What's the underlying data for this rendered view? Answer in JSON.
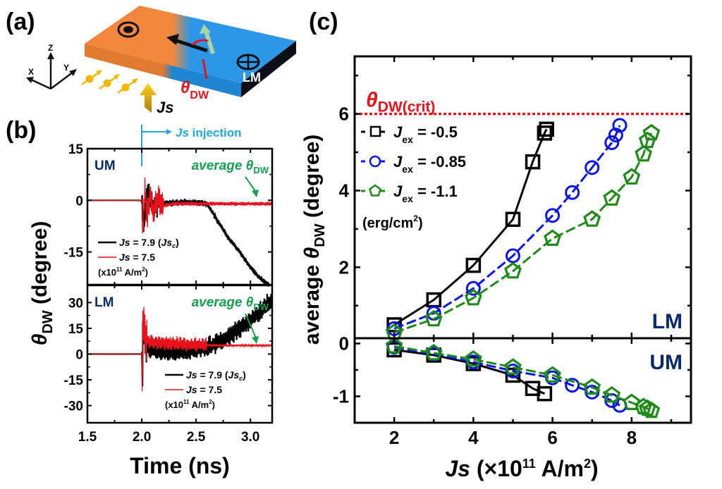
{
  "panel_labels": {
    "a": "(a)",
    "b": "(b)",
    "c": "(c)"
  },
  "diagram": {
    "axes": {
      "z": "Z",
      "x": "X",
      "y": "Y"
    },
    "region_label": "LM",
    "angle_label": "θ",
    "angle_sub": "DW",
    "current_label": "Js",
    "injection_label_italic": "Js",
    "injection_label_rest": " injection",
    "colors": {
      "left_domain": "#F0873C",
      "right_domain": "#2C97E6",
      "angle": "#E8121C",
      "current": "#F2B705",
      "injection": "#1EA7E1",
      "moment": "#A8D5A2"
    }
  },
  "chart_data": [
    {
      "id": "b-upper",
      "type": "line",
      "panel": "(b) upper",
      "region_label": "UM",
      "annotation": "average θDW",
      "ylabel": "θDW (degree)",
      "xlabel": "Time (ns)",
      "xlim": [
        1.5,
        3.2
      ],
      "ylim": [
        -24.5,
        15
      ],
      "yticks": [
        15,
        0,
        -15
      ],
      "xticks": [
        1.5,
        2.0,
        2.5,
        3.0
      ],
      "series": [
        {
          "name": "Js = 7.9 (Jsc)",
          "color": "#000000",
          "x": [
            1.5,
            2.0,
            2.02,
            2.05,
            2.1,
            2.2,
            2.4,
            2.6,
            2.7,
            2.8,
            2.9,
            3.0,
            3.1,
            3.17
          ],
          "y": [
            0,
            0,
            -8,
            3,
            -2,
            -1,
            -0.5,
            -1,
            -6,
            -11,
            -15,
            -19.5,
            -23,
            -24.5
          ]
        },
        {
          "name": "Js = 7.5",
          "color": "#E8121C",
          "x": [
            1.5,
            2.0,
            2.01,
            2.03,
            2.05,
            2.08,
            2.1,
            2.15,
            2.2,
            2.3,
            2.6,
            3.2
          ],
          "y": [
            0,
            0,
            -10,
            3,
            -5,
            2,
            -3,
            0,
            -1.5,
            -1,
            -1,
            -1
          ]
        }
      ],
      "legend": [
        "Js = 7.9 (Jsc)",
        "Js = 7.5",
        "(x10¹¹ A/m²)"
      ]
    },
    {
      "id": "b-lower",
      "type": "line",
      "panel": "(b) lower",
      "region_label": "LM",
      "annotation": "average θDW",
      "xlim": [
        1.5,
        3.2
      ],
      "ylim": [
        -40,
        40
      ],
      "yticks": [
        30,
        15,
        0,
        -15,
        -30
      ],
      "xticks": [
        1.5,
        2.0,
        2.5,
        3.0
      ],
      "series": [
        {
          "name": "Js = 7.9 (Jsc)",
          "color": "#000000",
          "x": [
            1.5,
            2.0,
            2.005,
            2.01,
            2.05,
            2.2,
            2.4,
            2.6,
            2.7,
            2.8,
            2.9,
            3.0,
            3.1,
            3.2
          ],
          "y": [
            0,
            0,
            -22,
            12,
            3,
            1,
            1,
            4,
            7,
            10,
            15,
            20,
            25,
            32
          ]
        },
        {
          "name": "Js = 7.5",
          "color": "#E8121C",
          "x": [
            1.5,
            2.0,
            2.003,
            2.008,
            2.03,
            2.1,
            2.3,
            2.5,
            2.7,
            3.2
          ],
          "y": [
            0,
            0,
            -33,
            20,
            8,
            7,
            6,
            5.5,
            5,
            5
          ]
        }
      ],
      "legend": [
        "Js = 7.9 (Jsc)",
        "Js = 7.5",
        "(x10¹¹ A/m²)"
      ]
    },
    {
      "id": "c",
      "type": "scatter",
      "panel": "(c)",
      "ylabel": "average θDW (degree)",
      "xlabel": "Js (×10¹¹ A/m²)",
      "xlim": [
        1.0,
        9.5
      ],
      "xticks": [
        2,
        4,
        6,
        8
      ],
      "upper": {
        "region_label": "LM",
        "ylim": [
          0.15,
          7.5
        ],
        "yticks": [
          6,
          4,
          2
        ]
      },
      "lower": {
        "region_label": "UM",
        "ylim": [
          -1.5,
          0.1
        ],
        "yticks": [
          0,
          -1
        ]
      },
      "threshold": {
        "label": "θDW(crit)",
        "value": 6,
        "color": "#E8121C"
      },
      "legend_unit": "(erg/cm²)",
      "series": [
        {
          "name": "Jex = -0.5",
          "marker": "square",
          "color": "#000000",
          "lm": {
            "x": [
              2,
              3,
              4,
              5,
              5.5,
              5.8,
              5.85
            ],
            "y": [
              0.5,
              1.15,
              2.05,
              3.25,
              4.75,
              5.5,
              5.6
            ]
          },
          "um": {
            "x": [
              2,
              3,
              4,
              5,
              5.5,
              5.8
            ],
            "y": [
              -0.12,
              -0.22,
              -0.38,
              -0.6,
              -0.85,
              -0.95
            ]
          }
        },
        {
          "name": "Jex = -0.85",
          "marker": "circle",
          "color": "#0A14E6",
          "lm": {
            "x": [
              2,
              3,
              4,
              5,
              6,
              6.5,
              7,
              7.5,
              7.6,
              7.7
            ],
            "y": [
              0.4,
              0.8,
              1.45,
              2.3,
              3.35,
              3.95,
              4.6,
              5.25,
              5.45,
              5.7
            ]
          },
          "um": {
            "x": [
              2,
              3,
              4,
              5,
              6,
              6.5,
              7,
              7.5,
              7.7
            ],
            "y": [
              -0.07,
              -0.2,
              -0.35,
              -0.52,
              -0.65,
              -0.79,
              -0.92,
              -1.08,
              -1.17
            ]
          }
        },
        {
          "name": "Jex = -1.1",
          "marker": "pentagon",
          "color": "#1F8A17",
          "lm": {
            "x": [
              2,
              3,
              4,
              5,
              6,
              7,
              7.5,
              8,
              8.3,
              8.4,
              8.5
            ],
            "y": [
              0.3,
              0.65,
              1.2,
              1.9,
              2.75,
              3.25,
              3.8,
              4.35,
              4.95,
              5.3,
              5.5
            ]
          },
          "um": {
            "x": [
              2,
              3,
              4,
              5,
              6,
              7,
              7.5,
              8,
              8.3,
              8.4,
              8.5
            ],
            "y": [
              -0.05,
              -0.18,
              -0.3,
              -0.45,
              -0.6,
              -0.83,
              -0.98,
              -1.12,
              -1.2,
              -1.23,
              -1.27
            ]
          }
        }
      ]
    }
  ],
  "texts": {
    "b_ylabel_theta": "θ",
    "b_ylabel_sub": "DW",
    "b_ylabel_rest": " (degree)",
    "b_xlabel": "Time (ns)",
    "c_ylabel_pre": "average ",
    "c_ylabel_theta": "θ",
    "c_ylabel_sub": "DW",
    "c_ylabel_rest": " (degree)",
    "c_xlabel_js": "Js",
    "c_xlabel_rest": " (×10",
    "c_xlabel_exp": "11",
    "c_xlabel_unit": " A/m",
    "c_xlabel_sq": "2",
    "c_xlabel_close": ")",
    "avg_pre": "average ",
    "avg_theta": "θ",
    "avg_sub": "DW",
    "crit_theta": "θ",
    "crit_sub": "DW(crit)",
    "legend_js": "Js",
    "legend_v79": " = 7.9 (",
    "legend_jsc": "Js",
    "legend_c": "c",
    "legend_close": ")",
    "legend_v75": " = 7.5",
    "legend_unit_pre": "(x10",
    "legend_unit_exp": "11",
    "legend_unit_mid": " A/m",
    "legend_unit_sq": "2",
    "legend_unit_close": ")",
    "jex_J": "J",
    "jex_sub": "ex",
    "jex_v1": " = -0.5",
    "jex_v2": " = -0.85",
    "jex_v3": " = -1.1",
    "erg_pre": "(erg/cm",
    "erg_sq": "2",
    "erg_close": ")"
  }
}
